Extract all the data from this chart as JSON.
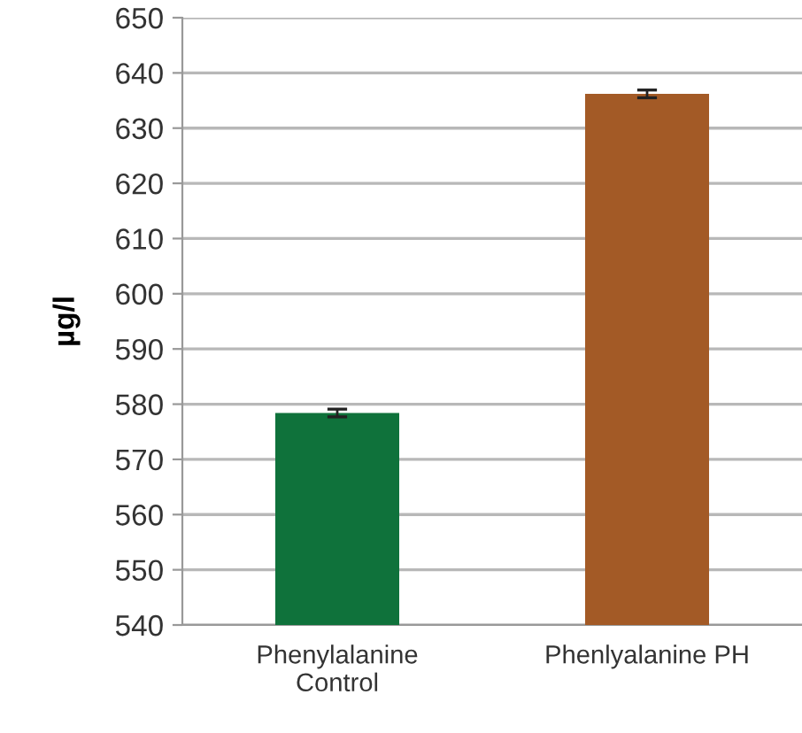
{
  "chart_data": {
    "type": "bar",
    "ylabel": "µg/l",
    "categories": [
      "Phenylalanine\nControl",
      "Phenlyalanine PH"
    ],
    "values": [
      578.4,
      636.2
    ],
    "errors": [
      0.7,
      0.7
    ],
    "colors": [
      "#0f723b",
      "#a35a26"
    ],
    "ylim": [
      540,
      650
    ],
    "yticks": [
      540,
      550,
      560,
      570,
      580,
      590,
      600,
      610,
      620,
      630,
      640,
      650
    ],
    "grid": "y"
  }
}
